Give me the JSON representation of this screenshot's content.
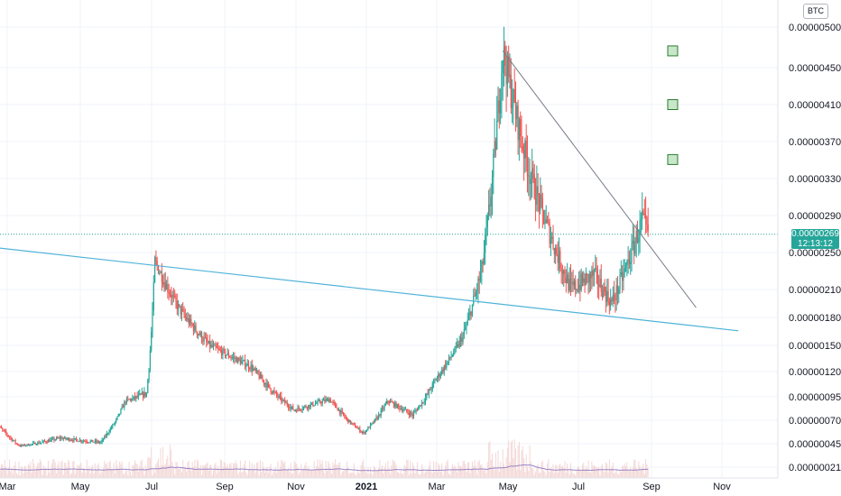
{
  "chart_data": {
    "type": "candlestick",
    "currency": "BTC",
    "y_axis": {
      "scale": "log",
      "ticks": [
        "0.00000500",
        "0.00000450",
        "0.00000410",
        "0.00000370",
        "0.00000330",
        "0.00000290",
        "0.00000250",
        "0.00000210",
        "0.00000180",
        "0.00000150",
        "0.00000120",
        "0.00000095",
        "0.00000070",
        "0.00000045",
        "0.00000021"
      ]
    },
    "x_axis": {
      "ticks": [
        {
          "label": "Mar",
          "bold": false
        },
        {
          "label": "May",
          "bold": false
        },
        {
          "label": "Jul",
          "bold": false
        },
        {
          "label": "Sep",
          "bold": false
        },
        {
          "label": "Nov",
          "bold": false
        },
        {
          "label": "2021",
          "bold": true
        },
        {
          "label": "Mar",
          "bold": false
        },
        {
          "label": "May",
          "bold": false
        },
        {
          "label": "Jul",
          "bold": false
        },
        {
          "label": "Sep",
          "bold": false
        },
        {
          "label": "Nov",
          "bold": false
        }
      ]
    },
    "last_price": "0.00000269",
    "countdown": "12:13:12",
    "colors": {
      "up": "#26a69a",
      "down": "#ef5350",
      "trendline": "#4fb3d9",
      "resistance": "#787b86",
      "ma": "#9c84c6",
      "grid": "#f0f3fa",
      "badge": "#26a69a",
      "marker_fill": "#c8e6c9",
      "marker_stroke": "#2e7d32"
    },
    "price_path": [
      {
        "date": "2020-02-20",
        "price": 6.6e-07
      },
      {
        "date": "2020-03-12",
        "price": 4.2e-07
      },
      {
        "date": "2020-04-15",
        "price": 5e-07
      },
      {
        "date": "2020-05-20",
        "price": 4.6e-07
      },
      {
        "date": "2020-06-10",
        "price": 9e-07
      },
      {
        "date": "2020-06-28",
        "price": 9.8e-07
      },
      {
        "date": "2020-07-05",
        "price": 2.4e-06
      },
      {
        "date": "2020-07-25",
        "price": 1.9e-06
      },
      {
        "date": "2020-08-20",
        "price": 1.5e-06
      },
      {
        "date": "2020-09-25",
        "price": 1.25e-06
      },
      {
        "date": "2020-11-01",
        "price": 8e-07
      },
      {
        "date": "2020-12-01",
        "price": 9.2e-07
      },
      {
        "date": "2020-12-30",
        "price": 5.5e-07
      },
      {
        "date": "2021-01-20",
        "price": 9e-07
      },
      {
        "date": "2021-02-10",
        "price": 7.5e-07
      },
      {
        "date": "2021-03-01",
        "price": 1.1e-06
      },
      {
        "date": "2021-03-25",
        "price": 1.6e-06
      },
      {
        "date": "2021-04-10",
        "price": 2.3e-06
      },
      {
        "date": "2021-04-28",
        "price": 4.7e-06
      },
      {
        "date": "2021-05-20",
        "price": 3.4e-06
      },
      {
        "date": "2021-06-10",
        "price": 2.6e-06
      },
      {
        "date": "2021-06-25",
        "price": 2.1e-06
      },
      {
        "date": "2021-07-15",
        "price": 2.25e-06
      },
      {
        "date": "2021-07-30",
        "price": 1.95e-06
      },
      {
        "date": "2021-08-25",
        "price": 2.85e-06
      },
      {
        "date": "2021-08-30",
        "price": 2.69e-06
      }
    ],
    "support_line": {
      "start": {
        "date": "2020-02-20",
        "price": 2.55e-06
      },
      "end": {
        "date": "2021-11-15",
        "price": 1.65e-06
      }
    },
    "resistance_line": {
      "start": {
        "date": "2021-04-28",
        "price": 4.7e-06
      },
      "end": {
        "date": "2021-10-10",
        "price": 1.9e-06
      }
    },
    "markers": [
      {
        "date": "2021-09-20",
        "price": 4.7e-06
      },
      {
        "date": "2021-09-20",
        "price": 4.1e-06
      },
      {
        "date": "2021-09-20",
        "price": 3.5e-06
      }
    ]
  }
}
